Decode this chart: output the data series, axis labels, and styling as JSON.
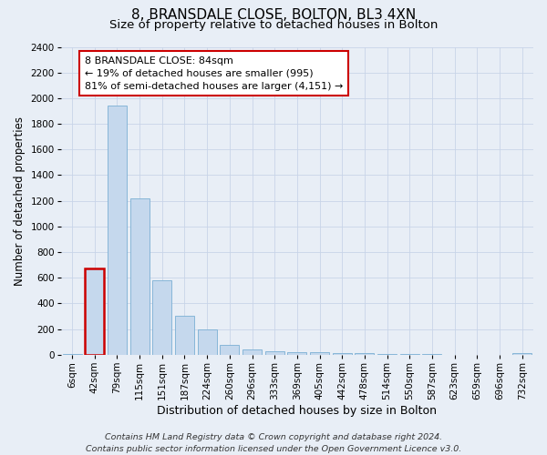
{
  "title1": "8, BRANSDALE CLOSE, BOLTON, BL3 4XN",
  "title2": "Size of property relative to detached houses in Bolton",
  "xlabel": "Distribution of detached houses by size in Bolton",
  "ylabel": "Number of detached properties",
  "bar_color": "#c5d8ed",
  "bar_edge_color": "#7aafd4",
  "highlight_bar_index": 1,
  "highlight_color": "#c5d8ed",
  "highlight_edge_color": "#cc0000",
  "annotation_text": "8 BRANSDALE CLOSE: 84sqm\n← 19% of detached houses are smaller (995)\n81% of semi-detached houses are larger (4,151) →",
  "annotation_box_color": "#ffffff",
  "annotation_box_edge": "#cc0000",
  "bins": [
    "6sqm",
    "42sqm",
    "79sqm",
    "115sqm",
    "151sqm",
    "187sqm",
    "224sqm",
    "260sqm",
    "296sqm",
    "333sqm",
    "369sqm",
    "405sqm",
    "442sqm",
    "478sqm",
    "514sqm",
    "550sqm",
    "587sqm",
    "623sqm",
    "659sqm",
    "696sqm",
    "732sqm"
  ],
  "values": [
    5,
    670,
    1940,
    1220,
    580,
    305,
    200,
    75,
    45,
    30,
    20,
    20,
    15,
    10,
    8,
    5,
    3,
    2,
    2,
    2,
    15
  ],
  "ylim": [
    0,
    2400
  ],
  "yticks": [
    0,
    200,
    400,
    600,
    800,
    1000,
    1200,
    1400,
    1600,
    1800,
    2000,
    2200,
    2400
  ],
  "grid_color": "#c8d4e8",
  "bg_color": "#e8eef6",
  "plot_bg_color": "#e8eef6",
  "footer": "Contains HM Land Registry data © Crown copyright and database right 2024.\nContains public sector information licensed under the Open Government Licence v3.0.",
  "title1_fontsize": 11,
  "title2_fontsize": 9.5,
  "xlabel_fontsize": 9,
  "ylabel_fontsize": 8.5,
  "tick_fontsize": 7.5,
  "footer_fontsize": 6.8,
  "annotation_fontsize": 8
}
